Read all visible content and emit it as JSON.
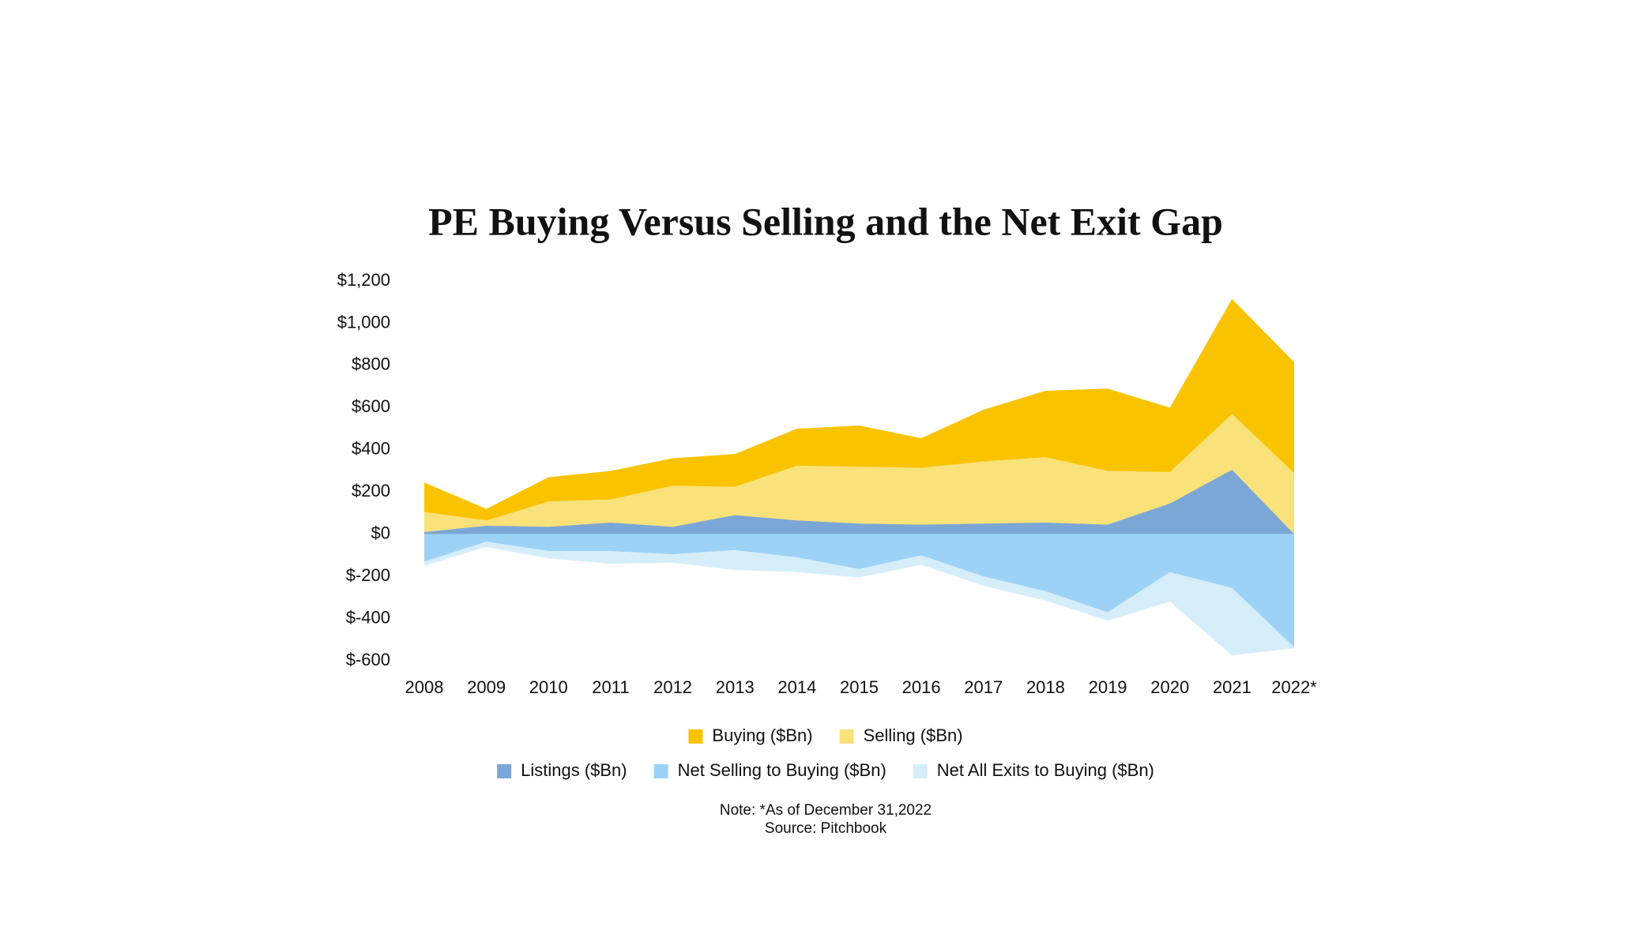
{
  "chart_data": {
    "type": "area",
    "title": "PE Buying Versus Selling and the Net Exit Gap",
    "categories": [
      "2008",
      "2009",
      "2010",
      "2011",
      "2012",
      "2013",
      "2014",
      "2015",
      "2016",
      "2017",
      "2018",
      "2019",
      "2020",
      "2021",
      "2022*"
    ],
    "series": [
      {
        "name": "Buying ($Bn)",
        "color": "#F9C300",
        "values": [
          245,
          120,
          270,
          300,
          360,
          380,
          500,
          515,
          455,
          590,
          680,
          690,
          600,
          1115,
          815
        ]
      },
      {
        "name": "Selling ($Bn)",
        "color": "#F9E27A",
        "values": [
          105,
          65,
          155,
          165,
          230,
          225,
          325,
          320,
          315,
          345,
          365,
          300,
          295,
          570,
          290
        ]
      },
      {
        "name": "Listings ($Bn)",
        "color": "#7BA7D7",
        "values": [
          10,
          40,
          35,
          55,
          35,
          90,
          65,
          50,
          45,
          50,
          55,
          45,
          145,
          305,
          0
        ]
      },
      {
        "name": "Net Selling to Buying ($Bn)",
        "color": "#9DD2F7",
        "values": [
          -130,
          -35,
          -80,
          -80,
          -95,
          -75,
          -110,
          -165,
          -100,
          -200,
          -270,
          -370,
          -180,
          -255,
          -535
        ]
      },
      {
        "name": "Net All Exits to Buying ($Bn)",
        "color": "#D6EEFA",
        "values": [
          -150,
          -60,
          -115,
          -140,
          -135,
          -170,
          -180,
          -205,
          -145,
          -245,
          -315,
          -410,
          -320,
          -575,
          -540
        ]
      }
    ],
    "ylim": [
      -600,
      1200
    ],
    "yticks": [
      {
        "value": 1200,
        "label": "$1,200"
      },
      {
        "value": 1000,
        "label": "$1,000"
      },
      {
        "value": 800,
        "label": "$800"
      },
      {
        "value": 600,
        "label": "$600"
      },
      {
        "value": 400,
        "label": "$400"
      },
      {
        "value": 200,
        "label": "$200"
      },
      {
        "value": 0,
        "label": "$0"
      },
      {
        "value": -200,
        "label": "$-200"
      },
      {
        "value": -400,
        "label": "$-400"
      },
      {
        "value": -600,
        "label": "$-600"
      }
    ],
    "grid": false,
    "legend": "bottom",
    "notes": [
      "Note: *As of December 31,2022",
      "Source: Pitchbook"
    ]
  }
}
